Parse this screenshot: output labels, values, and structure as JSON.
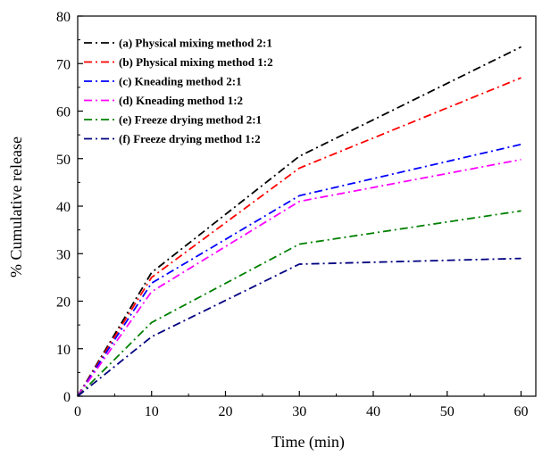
{
  "chart_data": {
    "type": "line",
    "title": "",
    "xlabel": "Time (min)",
    "ylabel": "% Cumulative release",
    "xlim": [
      0,
      62
    ],
    "ylim": [
      0,
      80
    ],
    "xticks": [
      0,
      10,
      20,
      30,
      40,
      50,
      60
    ],
    "yticks": [
      0,
      10,
      20,
      30,
      40,
      50,
      60,
      70,
      80
    ],
    "grid": false,
    "legend_position": "top-left",
    "line_style": "dash-dot",
    "x": [
      0,
      10,
      30,
      60
    ],
    "series": [
      {
        "name": "(a) Physical mixing method 2:1",
        "color": "#000000",
        "values": [
          0,
          26,
          50.5,
          73.5
        ]
      },
      {
        "name": "(b) Physical mixing method 1:2",
        "color": "#ff0000",
        "values": [
          0,
          25,
          48,
          67
        ]
      },
      {
        "name": "(c) Kneading method 2:1",
        "color": "#0000ff",
        "values": [
          0,
          23.8,
          42.2,
          53
        ]
      },
      {
        "name": "(d) Kneading method 1:2",
        "color": "#ff00ff",
        "values": [
          0,
          22,
          41,
          49.8
        ]
      },
      {
        "name": "(e) Freeze drying method 2:1",
        "color": "#008000",
        "values": [
          0,
          15.5,
          32,
          39
        ]
      },
      {
        "name": "(f) Freeze drying method 1:2",
        "color": "#000080",
        "values": [
          0,
          12.5,
          27.8,
          29
        ]
      }
    ]
  }
}
